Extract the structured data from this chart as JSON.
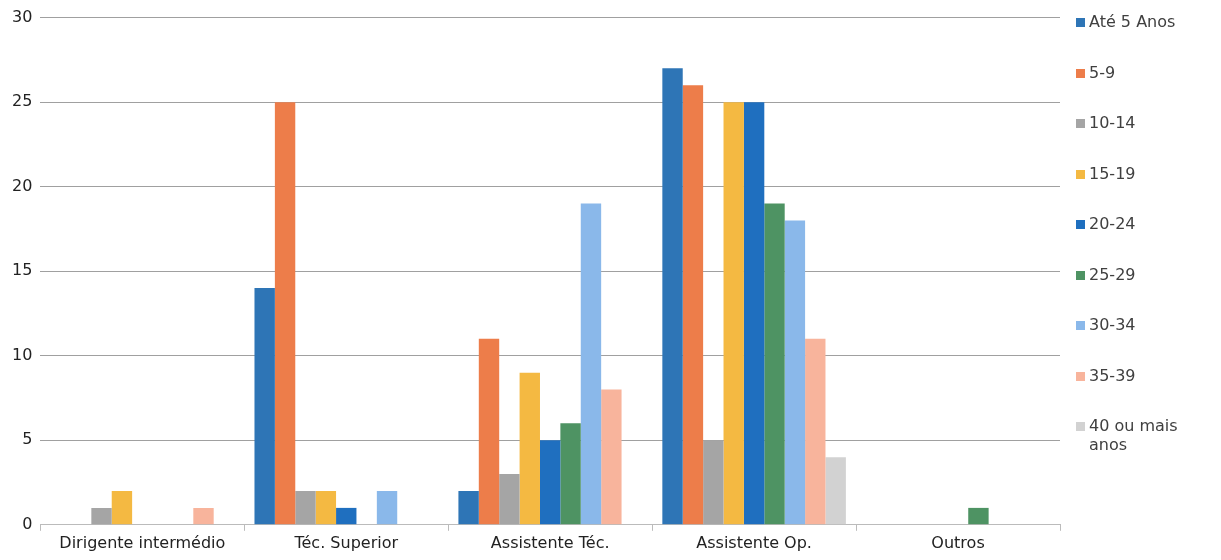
{
  "chart_data": {
    "type": "bar",
    "categories": [
      "Dirigente intermédio",
      "Téc. Superior",
      "Assistente Téc.",
      "Assistente Op.",
      "Outros"
    ],
    "series": [
      {
        "name": "Até 5 Anos",
        "color": "#2e75b6",
        "values": [
          0,
          14,
          2,
          27,
          0
        ]
      },
      {
        "name": "5-9",
        "color": "#ed7d4a",
        "values": [
          0,
          25,
          11,
          26,
          0
        ]
      },
      {
        "name": "10-14",
        "color": "#a5a5a5",
        "values": [
          1,
          2,
          3,
          5,
          0
        ]
      },
      {
        "name": "15-19",
        "color": "#f4b942",
        "values": [
          2,
          2,
          9,
          25,
          0
        ]
      },
      {
        "name": "20-24",
        "color": "#1f6fbf",
        "values": [
          0,
          1,
          5,
          25,
          0
        ]
      },
      {
        "name": "25-29",
        "color": "#4e9363",
        "values": [
          0,
          0,
          6,
          19,
          1
        ]
      },
      {
        "name": "30-34",
        "color": "#8ab8ea",
        "values": [
          0,
          2,
          19,
          18,
          0
        ]
      },
      {
        "name": "35-39",
        "color": "#f8b49c",
        "values": [
          1,
          0,
          8,
          11,
          0
        ]
      },
      {
        "name": "40 ou mais anos",
        "color": "#d2d2d2",
        "values": [
          0,
          0,
          0,
          4,
          0
        ]
      }
    ],
    "ylim": [
      0,
      30
    ],
    "yticks": [
      0,
      5,
      10,
      15,
      20,
      25,
      30
    ],
    "grid": "y",
    "legend": "right"
  }
}
